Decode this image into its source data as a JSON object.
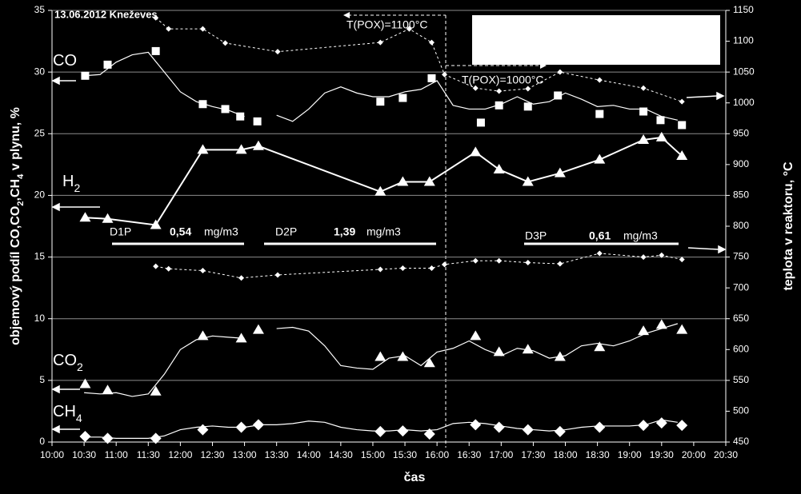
{
  "chart_data": {
    "type": "line",
    "title": "13.06.2012 Kneževes",
    "x_label": "čas",
    "y_label": [
      {
        "text": "objemový podíl CO,CO"
      },
      {
        "sub": "2"
      },
      {
        "text": ",CH"
      },
      {
        "sub": "4"
      },
      {
        "text": "  v plynu, %"
      }
    ],
    "y2_label": "teplota v reaktoru, °C",
    "xlim": [
      600,
      1230
    ],
    "xticks": [
      {
        "value": 600,
        "label": "10:00"
      },
      {
        "value": 630,
        "label": "10:30"
      },
      {
        "value": 660,
        "label": "11:00"
      },
      {
        "value": 690,
        "label": "11:30"
      },
      {
        "value": 720,
        "label": "12:00"
      },
      {
        "value": 750,
        "label": "12:30"
      },
      {
        "value": 780,
        "label": "13:00"
      },
      {
        "value": 810,
        "label": "13:30"
      },
      {
        "value": 840,
        "label": "14:00"
      },
      {
        "value": 870,
        "label": "14:30"
      },
      {
        "value": 900,
        "label": "15:00"
      },
      {
        "value": 930,
        "label": "15:30"
      },
      {
        "value": 960,
        "label": "16:00"
      },
      {
        "value": 990,
        "label": "16:30"
      },
      {
        "value": 1020,
        "label": "17:00"
      },
      {
        "value": 1050,
        "label": "17:30"
      },
      {
        "value": 1080,
        "label": "18:00"
      },
      {
        "value": 1110,
        "label": "18:30"
      },
      {
        "value": 1140,
        "label": "19:00"
      },
      {
        "value": 1170,
        "label": "19:30"
      },
      {
        "value": 1200,
        "label": "20:00"
      },
      {
        "value": 1230,
        "label": "20:30"
      }
    ],
    "ylim": [
      0,
      35
    ],
    "yticks": [
      0,
      5,
      10,
      15,
      20,
      25,
      30,
      35
    ],
    "y2lim": [
      450,
      1150
    ],
    "y2ticks": [
      450,
      500,
      550,
      600,
      650,
      700,
      750,
      800,
      850,
      900,
      950,
      1000,
      1050,
      1100,
      1150
    ],
    "grid": true,
    "x": [
      630,
      645,
      660,
      675,
      690,
      705,
      720,
      735,
      750,
      765,
      780,
      795,
      810,
      825,
      840,
      855,
      870,
      885,
      900,
      915,
      930,
      945,
      960,
      975,
      990,
      1005,
      1020,
      1035,
      1050,
      1065,
      1080,
      1095,
      1110,
      1125,
      1140,
      1155,
      1170,
      1185
    ],
    "series": [
      {
        "color": "#ffffff",
        "line": "solid",
        "marker": "none",
        "values": [
          29.7,
          29.8,
          30.8,
          31.4,
          31.6,
          30.0,
          28.4,
          27.6,
          27.2,
          26.9,
          26.4,
          null,
          26.5,
          26.0,
          27.0,
          28.3,
          28.8,
          28.3,
          28.0,
          28.0,
          28.4,
          28.6,
          29.3,
          27.3,
          27.0,
          27.0,
          27.4,
          28.0,
          27.4,
          27.6,
          28.3,
          27.8,
          27.2,
          27.3,
          27.0,
          27.0,
          26.4,
          26.1
        ]
      },
      {
        "color": "#ffffff",
        "line": "none",
        "marker": "square",
        "x": [
          631,
          652,
          697,
          741,
          762,
          776,
          792,
          907,
          928,
          955,
          1001,
          1018,
          1045,
          1073,
          1112,
          1153,
          1169,
          1189
        ],
        "values": [
          29.7,
          30.6,
          31.7,
          27.4,
          27.0,
          26.4,
          26.0,
          27.6,
          27.9,
          29.5,
          25.9,
          27.3,
          27.2,
          28.1,
          26.6,
          26.8,
          26.1,
          25.7
        ]
      },
      {
        "color": "#ffffff",
        "line": "solid",
        "marker": "triangle",
        "x": [
          631,
          652,
          697,
          741,
          777,
          793,
          907,
          928,
          953,
          996,
          1018,
          1045,
          1075,
          1112,
          1153,
          1170,
          1189
        ],
        "values": [
          18.2,
          18.1,
          17.6,
          23.7,
          23.7,
          24.0,
          20.3,
          21.1,
          21.1,
          23.5,
          22.1,
          21.1,
          21.8,
          22.9,
          24.5,
          24.7,
          23.2
        ]
      },
      {
        "color": "#ffffff",
        "line": "solid",
        "marker": "none",
        "values": [
          4.0,
          3.9,
          4.0,
          3.7,
          3.9,
          5.5,
          7.5,
          8.3,
          8.6,
          8.5,
          8.4,
          null,
          9.2,
          9.3,
          9.0,
          7.8,
          6.2,
          6.0,
          5.9,
          6.8,
          7.0,
          6.2,
          7.3,
          7.6,
          8.2,
          7.5,
          7.0,
          7.6,
          7.4,
          6.8,
          7.0,
          7.8,
          8.0,
          7.8,
          8.2,
          8.8,
          9.2,
          9.6
        ]
      },
      {
        "color": "#ffffff",
        "line": "none",
        "marker": "triangle",
        "x": [
          631,
          652,
          697,
          741,
          777,
          793,
          907,
          928,
          953,
          996,
          1018,
          1045,
          1075,
          1112,
          1153,
          1170,
          1189
        ],
        "values": [
          4.7,
          4.2,
          4.1,
          8.6,
          8.4,
          9.1,
          6.9,
          6.9,
          6.4,
          8.6,
          7.3,
          7.5,
          6.9,
          7.7,
          9.0,
          9.5,
          9.1
        ]
      },
      {
        "color": "#ffffff",
        "line": "solid",
        "marker": "none",
        "values": [
          0.4,
          0.4,
          0.3,
          0.3,
          0.3,
          0.5,
          1.0,
          1.2,
          1.3,
          1.2,
          1.2,
          1.4,
          1.4,
          1.5,
          1.7,
          1.6,
          1.2,
          1.0,
          0.9,
          0.9,
          1.0,
          0.9,
          1.0,
          1.5,
          1.6,
          1.5,
          1.3,
          1.1,
          1.0,
          0.9,
          1.0,
          1.2,
          1.3,
          1.3,
          1.3,
          1.4,
          1.8,
          1.6
        ]
      },
      {
        "color": "#ffffff",
        "line": "none",
        "marker": "diamond",
        "x": [
          631,
          652,
          697,
          741,
          777,
          793,
          907,
          928,
          953,
          996,
          1018,
          1045,
          1075,
          1112,
          1153,
          1170,
          1189
        ],
        "values": [
          0.45,
          0.3,
          0.3,
          1.0,
          1.2,
          1.4,
          0.85,
          0.9,
          0.65,
          1.4,
          1.2,
          1.0,
          0.85,
          1.2,
          1.35,
          1.55,
          1.35
        ]
      },
      {
        "color": "#ffffff",
        "line": "dashed",
        "marker": "small-diamond",
        "axis": "y2",
        "x": [
          697,
          709,
          741,
          762,
          811,
          907,
          934,
          955,
          967,
          996,
          1018,
          1045,
          1075,
          1112,
          1153,
          1189
        ],
        "values": [
          1138,
          1120,
          1120,
          1097,
          1083,
          1098,
          1120,
          1098,
          1046,
          1024,
          1019,
          1023,
          1050,
          1037,
          1024,
          1002
        ]
      },
      {
        "color": "#ffffff",
        "line": "dashed",
        "marker": "small-diamond",
        "axis": "y2",
        "x": [
          697,
          709,
          741,
          777,
          811,
          907,
          928,
          955,
          967,
          996,
          1018,
          1045,
          1075,
          1112,
          1153,
          1170,
          1189
        ],
        "values": [
          735,
          731,
          728,
          716,
          721,
          730,
          732,
          732,
          738,
          744,
          744,
          741,
          739,
          756,
          750,
          753,
          746
        ]
      }
    ],
    "gas_labels": [
      [
        {
          "text": "CO"
        }
      ],
      [
        {
          "text": "H"
        },
        {
          "sub": "2"
        }
      ],
      [
        {
          "text": "CO"
        },
        {
          "sub": "2"
        }
      ],
      [
        {
          "text": "CH"
        },
        {
          "sub": "4"
        }
      ]
    ],
    "annotations": {
      "pox_high": "T(POX)=1100°C",
      "pox_low": "T(POX)=1000°C",
      "dust": [
        {
          "label": "D1P",
          "value": "0,54",
          "unit": "mg/m3"
        },
        {
          "label": "D2P",
          "value": "1,39",
          "unit": "mg/m3"
        },
        {
          "label": "D3P",
          "value": "0,61",
          "unit": "mg/m3"
        }
      ]
    }
  }
}
